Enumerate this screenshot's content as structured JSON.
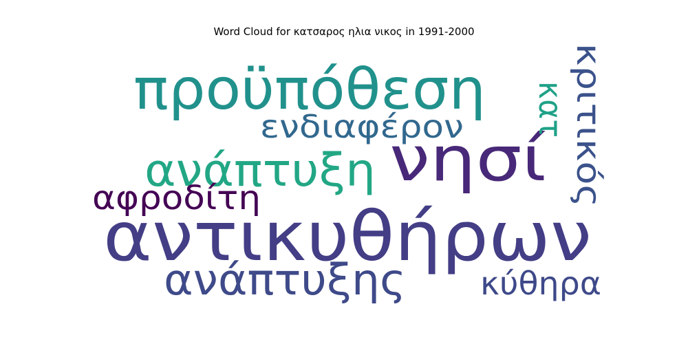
{
  "chart_data": {
    "type": "wordcloud",
    "title": "Word Cloud for κατσαρος ηλια νικος in 1991-2000",
    "words": [
      {
        "text": "αντικυθήρων",
        "weight": 1.0,
        "color": "#433e85",
        "orientation": "horizontal"
      },
      {
        "text": "νησί",
        "weight": 0.9,
        "color": "#482878",
        "orientation": "horizontal"
      },
      {
        "text": "προϋπόθεση",
        "weight": 0.85,
        "color": "#21918c",
        "orientation": "horizontal"
      },
      {
        "text": "ανάπτυξη",
        "weight": 0.7,
        "color": "#22a785",
        "orientation": "horizontal"
      },
      {
        "text": "ανάπτυξης",
        "weight": 0.65,
        "color": "#3e4a89",
        "orientation": "horizontal"
      },
      {
        "text": "αφροδίτη",
        "weight": 0.5,
        "color": "#440154",
        "orientation": "horizontal"
      },
      {
        "text": "ενδιαφέρον",
        "weight": 0.45,
        "color": "#31688e",
        "orientation": "horizontal"
      },
      {
        "text": "κύθηρα",
        "weight": 0.45,
        "color": "#3e4989",
        "orientation": "horizontal"
      },
      {
        "text": "κριτικός",
        "weight": 0.5,
        "color": "#3b528b",
        "orientation": "vertical"
      },
      {
        "text": "κατ",
        "weight": 0.45,
        "color": "#1fa187",
        "orientation": "vertical"
      }
    ]
  }
}
